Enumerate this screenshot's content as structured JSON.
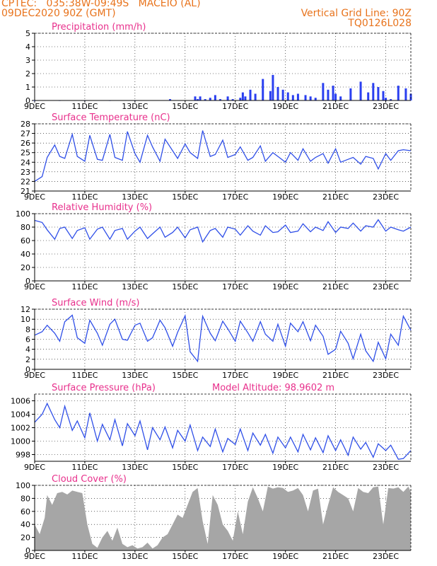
{
  "header": {
    "line1": "CPTEC:   035:38W-09:49S   MACEIO (AL)",
    "line2": "09DEC2020 90Z (GMT)",
    "vgrid": "Vertical Grid Line: 90Z",
    "code": "TQ0126L028"
  },
  "colors": {
    "header": "#e8731c",
    "title": "#e8308c",
    "line": "#2f4fe8",
    "bar": "#2a3ff0",
    "cloud": "#a6a6a6"
  },
  "chart_data": [
    {
      "type": "bar",
      "title": "Precipitation (mm/h)",
      "ylim": [
        0,
        5
      ],
      "yticks": [
        0,
        1,
        2,
        3,
        4,
        5
      ],
      "xlim": [
        0,
        15
      ],
      "xticks": [
        0,
        2,
        4,
        6,
        8,
        10,
        12,
        14
      ],
      "xticklabels": [
        "9DEC",
        "11DEC",
        "13DEC",
        "15DEC",
        "17DEC",
        "19DEC",
        "21DEC",
        "23DEC"
      ],
      "grid": true,
      "x": [
        0.0,
        1.0,
        2.0,
        3.0,
        4.0,
        5.4,
        6.4,
        6.5,
        6.6,
        6.8,
        7.0,
        7.2,
        7.4,
        7.7,
        7.9,
        8.2,
        8.3,
        8.4,
        8.6,
        8.8,
        9.1,
        9.4,
        9.5,
        9.7,
        9.9,
        10.1,
        10.3,
        10.5,
        10.8,
        11.0,
        11.2,
        11.5,
        11.7,
        11.9,
        12.0,
        12.2,
        12.6,
        13.0,
        13.3,
        13.5,
        13.7,
        13.9,
        14.0,
        14.2,
        14.5,
        14.8,
        15.0
      ],
      "values": [
        0.0,
        0.0,
        0.0,
        0.0,
        0.0,
        0.1,
        0.3,
        0.1,
        0.3,
        0.1,
        0.2,
        0.4,
        0.1,
        0.3,
        0.1,
        0.2,
        0.6,
        0.3,
        0.8,
        0.5,
        1.6,
        0.7,
        1.9,
        1.0,
        0.8,
        0.6,
        0.4,
        0.5,
        0.4,
        0.3,
        0.2,
        1.3,
        0.8,
        1.1,
        0.5,
        0.3,
        0.9,
        1.4,
        0.6,
        1.3,
        1.0,
        0.7,
        0.2,
        0.1,
        1.1,
        0.9,
        0.5
      ]
    },
    {
      "type": "line",
      "title": "Surface Temperature (nC)",
      "ylim": [
        21,
        28
      ],
      "yticks": [
        21,
        22,
        23,
        24,
        25,
        26,
        27,
        28
      ],
      "xlim": [
        0,
        15
      ],
      "xticks": [
        0,
        2,
        4,
        6,
        8,
        10,
        12,
        14
      ],
      "xticklabels": [
        "9DEC",
        "11DEC",
        "13DEC",
        "15DEC",
        "17DEC",
        "19DEC",
        "21DEC",
        "23DEC"
      ],
      "grid": true,
      "x": [
        0.0,
        0.3,
        0.5,
        0.8,
        1.0,
        1.2,
        1.5,
        1.7,
        2.0,
        2.2,
        2.5,
        2.7,
        3.0,
        3.2,
        3.5,
        3.7,
        4.0,
        4.2,
        4.5,
        4.7,
        5.0,
        5.2,
        5.5,
        5.7,
        6.0,
        6.2,
        6.5,
        6.7,
        7.0,
        7.2,
        7.5,
        7.7,
        8.0,
        8.2,
        8.5,
        8.7,
        9.0,
        9.2,
        9.5,
        9.7,
        10.0,
        10.2,
        10.5,
        10.7,
        11.0,
        11.2,
        11.5,
        11.7,
        12.0,
        12.2,
        12.5,
        12.7,
        13.0,
        13.2,
        13.5,
        13.7,
        14.0,
        14.2,
        14.5,
        14.7,
        15.0
      ],
      "values": [
        22.0,
        22.5,
        24.5,
        25.8,
        24.6,
        24.4,
        26.9,
        24.6,
        24.1,
        26.8,
        24.3,
        24.2,
        26.9,
        24.5,
        24.2,
        27.2,
        24.9,
        24.0,
        26.8,
        25.6,
        24.1,
        26.4,
        25.2,
        24.4,
        25.9,
        25.0,
        24.4,
        27.3,
        24.6,
        24.8,
        26.3,
        24.5,
        24.8,
        25.6,
        24.2,
        24.5,
        25.7,
        24.1,
        25.0,
        24.6,
        24.0,
        25.0,
        24.2,
        25.4,
        24.1,
        24.5,
        24.9,
        23.9,
        25.4,
        24.0,
        24.3,
        24.5,
        23.8,
        24.6,
        24.4,
        23.3,
        24.9,
        24.2,
        25.2,
        25.3,
        25.2
      ]
    },
    {
      "type": "line",
      "title": "Relative Humidity (%)",
      "ylim": [
        0,
        100
      ],
      "yticks": [
        0,
        20,
        40,
        60,
        80,
        100
      ],
      "xlim": [
        0,
        15
      ],
      "xticks": [
        0,
        2,
        4,
        6,
        8,
        10,
        12,
        14
      ],
      "xticklabels": [
        "9DEC",
        "11DEC",
        "13DEC",
        "15DEC",
        "17DEC",
        "19DEC",
        "21DEC",
        "23DEC"
      ],
      "grid": true,
      "x": [
        0.0,
        0.3,
        0.5,
        0.8,
        1.0,
        1.2,
        1.5,
        1.7,
        2.0,
        2.2,
        2.5,
        2.7,
        3.0,
        3.2,
        3.5,
        3.7,
        4.0,
        4.2,
        4.5,
        4.7,
        5.0,
        5.2,
        5.5,
        5.7,
        6.0,
        6.2,
        6.5,
        6.7,
        7.0,
        7.2,
        7.5,
        7.7,
        8.0,
        8.2,
        8.5,
        8.7,
        9.0,
        9.2,
        9.5,
        9.7,
        10.0,
        10.2,
        10.5,
        10.7,
        11.0,
        11.2,
        11.5,
        11.7,
        12.0,
        12.2,
        12.5,
        12.7,
        13.0,
        13.2,
        13.5,
        13.7,
        14.0,
        14.2,
        14.5,
        14.7,
        15.0
      ],
      "values": [
        90,
        87,
        76,
        62,
        78,
        80,
        63,
        75,
        79,
        62,
        77,
        80,
        62,
        75,
        78,
        62,
        74,
        80,
        63,
        70,
        80,
        65,
        72,
        80,
        64,
        76,
        80,
        58,
        75,
        78,
        65,
        80,
        77,
        68,
        82,
        74,
        68,
        82,
        72,
        73,
        83,
        72,
        74,
        85,
        73,
        80,
        75,
        88,
        72,
        80,
        78,
        86,
        74,
        82,
        80,
        91,
        74,
        80,
        76,
        74,
        80
      ]
    },
    {
      "type": "line",
      "title": "Surface Wind (m/s)",
      "ylim": [
        0,
        12
      ],
      "yticks": [
        0,
        2,
        4,
        6,
        8,
        10,
        12
      ],
      "xlim": [
        0,
        15
      ],
      "xticks": [
        0,
        2,
        4,
        6,
        8,
        10,
        12,
        14
      ],
      "xticklabels": [
        "9DEC",
        "11DEC",
        "13DEC",
        "15DEC",
        "17DEC",
        "19DEC",
        "21DEC",
        "23DEC"
      ],
      "grid": true,
      "x": [
        0.0,
        0.3,
        0.5,
        0.8,
        1.0,
        1.2,
        1.5,
        1.7,
        2.0,
        2.2,
        2.5,
        2.7,
        3.0,
        3.2,
        3.5,
        3.7,
        4.0,
        4.2,
        4.5,
        4.7,
        5.0,
        5.2,
        5.5,
        5.7,
        6.0,
        6.2,
        6.5,
        6.7,
        7.0,
        7.2,
        7.5,
        7.7,
        8.0,
        8.2,
        8.5,
        8.7,
        9.0,
        9.2,
        9.5,
        9.7,
        10.0,
        10.2,
        10.5,
        10.7,
        11.0,
        11.2,
        11.5,
        11.7,
        12.0,
        12.2,
        12.5,
        12.7,
        13.0,
        13.2,
        13.5,
        13.7,
        14.0,
        14.2,
        14.5,
        14.7,
        15.0
      ],
      "values": [
        6.8,
        7.5,
        8.8,
        7.2,
        5.6,
        9.5,
        10.8,
        6.3,
        5.2,
        9.8,
        7.2,
        4.8,
        9.0,
        10.0,
        6.0,
        5.8,
        8.8,
        9.2,
        5.6,
        6.3,
        9.8,
        8.3,
        4.6,
        7.4,
        10.7,
        3.5,
        1.6,
        10.6,
        7.2,
        5.7,
        9.6,
        8.1,
        5.6,
        9.6,
        7.3,
        5.6,
        9.5,
        7.0,
        5.6,
        9.0,
        4.6,
        9.2,
        7.5,
        9.5,
        5.7,
        8.8,
        6.6,
        3.0,
        4.0,
        7.6,
        5.2,
        2.1,
        7.0,
        3.7,
        1.6,
        5.4,
        2.1,
        7.0,
        4.8,
        10.6,
        7.8
      ]
    },
    {
      "type": "line",
      "title": "Surface Pressure (hPa)",
      "annotation": "Model Altitude: 98.9602 m",
      "ylim": [
        997,
        1007
      ],
      "yticks": [
        998,
        1000,
        1002,
        1004,
        1006
      ],
      "xlim": [
        0,
        15
      ],
      "xticks": [
        0,
        2,
        4,
        6,
        8,
        10,
        12,
        14
      ],
      "xticklabels": [
        "9DEC",
        "11DEC",
        "13DEC",
        "15DEC",
        "17DEC",
        "19DEC",
        "21DEC",
        "23DEC"
      ],
      "grid": true,
      "x": [
        0.0,
        0.3,
        0.5,
        0.8,
        1.0,
        1.2,
        1.5,
        1.7,
        2.0,
        2.2,
        2.5,
        2.7,
        3.0,
        3.2,
        3.5,
        3.7,
        4.0,
        4.2,
        4.5,
        4.7,
        5.0,
        5.2,
        5.5,
        5.7,
        6.0,
        6.2,
        6.5,
        6.7,
        7.0,
        7.2,
        7.5,
        7.7,
        8.0,
        8.2,
        8.5,
        8.7,
        9.0,
        9.2,
        9.5,
        9.7,
        10.0,
        10.2,
        10.5,
        10.7,
        11.0,
        11.2,
        11.5,
        11.7,
        12.0,
        12.2,
        12.5,
        12.7,
        13.0,
        13.2,
        13.5,
        13.7,
        14.0,
        14.2,
        14.5,
        14.7,
        15.0
      ],
      "values": [
        1002.8,
        1004.0,
        1005.6,
        1003.2,
        1002.0,
        1005.2,
        1001.6,
        1003.0,
        1000.5,
        1004.2,
        1000.0,
        1002.5,
        1000.2,
        1003.2,
        999.3,
        1002.6,
        1000.8,
        1003.0,
        998.7,
        1002.0,
        1000.2,
        1002.1,
        999.0,
        1001.6,
        1000.0,
        1002.4,
        998.6,
        1000.6,
        999.2,
        1001.8,
        998.4,
        1000.4,
        999.5,
        1001.8,
        998.6,
        1001.2,
        999.4,
        1001.0,
        998.2,
        1000.6,
        999.0,
        1000.6,
        998.4,
        1001.0,
        998.7,
        1000.5,
        998.3,
        1000.8,
        998.6,
        1000.2,
        997.9,
        1000.6,
        998.8,
        999.8,
        997.6,
        999.6,
        998.6,
        999.4,
        997.3,
        997.4,
        998.6
      ]
    },
    {
      "type": "area",
      "title": "Cloud Cover (%)",
      "ylim": [
        0,
        100
      ],
      "yticks": [
        0,
        20,
        40,
        60,
        80,
        100
      ],
      "xlim": [
        0,
        15
      ],
      "xticks": [
        0,
        2,
        4,
        6,
        8,
        10,
        12,
        14
      ],
      "xticklabels": [
        "9DEC",
        "11DEC",
        "13DEC",
        "15DEC",
        "17DEC",
        "19DEC",
        "21DEC",
        "23DEC"
      ],
      "grid": true,
      "x": [
        0.0,
        0.2,
        0.4,
        0.5,
        0.7,
        0.9,
        1.1,
        1.3,
        1.5,
        1.7,
        1.9,
        2.1,
        2.3,
        2.5,
        2.7,
        2.9,
        3.1,
        3.3,
        3.5,
        3.7,
        3.9,
        4.1,
        4.3,
        4.5,
        4.7,
        4.9,
        5.1,
        5.3,
        5.5,
        5.7,
        5.9,
        6.1,
        6.3,
        6.5,
        6.7,
        6.9,
        7.1,
        7.3,
        7.5,
        7.7,
        7.9,
        8.1,
        8.3,
        8.5,
        8.7,
        8.9,
        9.1,
        9.3,
        9.5,
        9.7,
        9.9,
        10.1,
        10.3,
        10.5,
        10.7,
        10.9,
        11.1,
        11.3,
        11.5,
        11.7,
        11.9,
        12.1,
        12.3,
        12.5,
        12.7,
        12.9,
        13.1,
        13.3,
        13.5,
        13.7,
        13.9,
        14.1,
        14.3,
        14.5,
        14.7,
        14.9,
        15.0
      ],
      "values": [
        40,
        25,
        50,
        85,
        70,
        88,
        90,
        86,
        92,
        90,
        88,
        40,
        10,
        4,
        20,
        30,
        15,
        35,
        10,
        5,
        8,
        3,
        5,
        12,
        3,
        8,
        20,
        25,
        40,
        55,
        50,
        70,
        90,
        96,
        45,
        10,
        85,
        70,
        40,
        30,
        15,
        60,
        25,
        75,
        97,
        80,
        60,
        98,
        95,
        97,
        96,
        90,
        92,
        96,
        85,
        60,
        92,
        95,
        40,
        70,
        97,
        90,
        85,
        80,
        60,
        96,
        90,
        88,
        97,
        98,
        40,
        96,
        95,
        97,
        90,
        98,
        90
      ]
    }
  ]
}
